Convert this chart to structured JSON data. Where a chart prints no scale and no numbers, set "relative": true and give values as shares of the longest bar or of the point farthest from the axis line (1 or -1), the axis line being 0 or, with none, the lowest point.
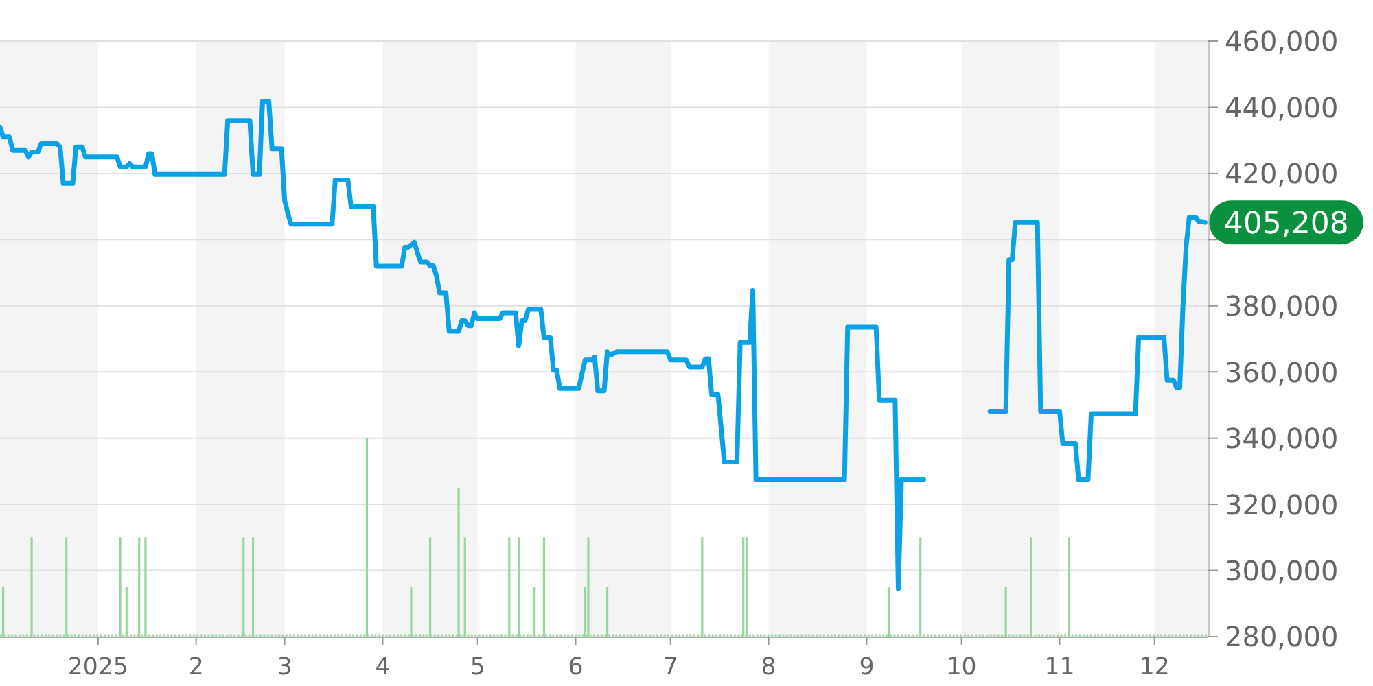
{
  "chart_data": [
    {
      "type": "line",
      "x": [
        "2024-12-01",
        "2024-12-02",
        "2024-12-04",
        "2024-12-05",
        "2024-12-09",
        "2024-12-10",
        "2024-12-11",
        "2024-12-13",
        "2024-12-14",
        "2024-12-19",
        "2024-12-20",
        "2024-12-21",
        "2024-12-24",
        "2024-12-25",
        "2024-12-27",
        "2024-12-28",
        "2025-01-07",
        "2025-01-08",
        "2025-01-10",
        "2025-01-11",
        "2025-01-12",
        "2025-01-16",
        "2025-01-17",
        "2025-01-18",
        "2025-01-19",
        "2025-02-10",
        "2025-02-11",
        "2025-02-18",
        "2025-02-19",
        "2025-02-21",
        "2025-02-22",
        "2025-02-24",
        "2025-02-25",
        "2025-02-28",
        "2025-03-01",
        "2025-03-02",
        "2025-03-03",
        "2025-03-16",
        "2025-03-17",
        "2025-03-21",
        "2025-03-22",
        "2025-03-29",
        "2025-03-30",
        "2025-04-07",
        "2025-04-08",
        "2025-04-09",
        "2025-04-11",
        "2025-04-12",
        "2025-04-13",
        "2025-04-15",
        "2025-04-16",
        "2025-04-17",
        "2025-04-18",
        "2025-04-19",
        "2025-04-21",
        "2025-04-22",
        "2025-04-25",
        "2025-04-26",
        "2025-04-27",
        "2025-04-28",
        "2025-04-29",
        "2025-04-30",
        "2025-05-01",
        "2025-05-08",
        "2025-05-09",
        "2025-05-13",
        "2025-05-14",
        "2025-05-15",
        "2025-05-16",
        "2025-05-17",
        "2025-05-21",
        "2025-05-22",
        "2025-05-24",
        "2025-05-25",
        "2025-05-26",
        "2025-05-27",
        "2025-06-02",
        "2025-06-03",
        "2025-06-04",
        "2025-06-06",
        "2025-06-07",
        "2025-06-08",
        "2025-06-10",
        "2025-06-11",
        "2025-06-12",
        "2025-06-14",
        "2025-06-30",
        "2025-07-01",
        "2025-07-06",
        "2025-07-07",
        "2025-07-11",
        "2025-07-12",
        "2025-07-13",
        "2025-07-14",
        "2025-07-16",
        "2025-07-17",
        "2025-07-18",
        "2025-07-22",
        "2025-07-23",
        "2025-07-26",
        "2025-07-27",
        "2025-07-28",
        "2025-08-25",
        "2025-08-26",
        "2025-09-04",
        "2025-09-05",
        "2025-09-10",
        "2025-09-11",
        "2025-09-12",
        "2025-09-19",
        "2025-09-30",
        "2025-10-10",
        "2025-10-15",
        "2025-10-16",
        "2025-10-17",
        "2025-10-18",
        "2025-10-25",
        "2025-10-26",
        "2025-11-01",
        "2025-11-02",
        "2025-11-06",
        "2025-11-07",
        "2025-11-10",
        "2025-11-11",
        "2025-11-25",
        "2025-11-26",
        "2025-12-04",
        "2025-12-05",
        "2025-12-07",
        "2025-12-08",
        "2025-12-09",
        "2025-12-10",
        "2025-12-11",
        "2025-12-12",
        "2025-12-14",
        "2025-12-15",
        "2025-12-16",
        "2025-12-17"
      ],
      "series": [
        {
          "color": "#0ba1e6",
          "values": [
            434000,
            431000,
            431000,
            427000,
            427000,
            425000,
            426500,
            426500,
            429000,
            429000,
            428000,
            417000,
            417000,
            428000,
            428000,
            425000,
            425000,
            422000,
            422000,
            423000,
            422000,
            422000,
            426000,
            426000,
            419700,
            419700,
            436000,
            436000,
            419700,
            419700,
            441800,
            441800,
            427500,
            427500,
            411800,
            408000,
            404700,
            404700,
            418000,
            418000,
            410000,
            410000,
            392000,
            392000,
            397700,
            397700,
            399200,
            396000,
            393200,
            393200,
            392100,
            392100,
            389000,
            383900,
            383900,
            372300,
            372300,
            375500,
            375500,
            374000,
            374000,
            377900,
            376100,
            376100,
            377900,
            377900,
            367900,
            375500,
            375500,
            378900,
            378900,
            370300,
            370300,
            360500,
            360500,
            355000,
            355000,
            359500,
            363600,
            363600,
            364500,
            354300,
            354300,
            366100,
            365100,
            366100,
            366100,
            363600,
            363600,
            361500,
            361500,
            364000,
            364000,
            353200,
            353200,
            343000,
            332800,
            332800,
            368900,
            368900,
            384600,
            327500,
            327500,
            373500,
            373500,
            351500,
            351500,
            294500,
            327500,
            327500,
            null,
            348100,
            348100,
            393900,
            393900,
            405200,
            405200,
            348100,
            348100,
            338400,
            338400,
            327500,
            327500,
            347400,
            347400,
            370500,
            370500,
            357500,
            357500,
            355300,
            355300,
            380000,
            398000,
            406800,
            406800,
            405500,
            405500,
            405208
          ]
        }
      ],
      "xlim": [
        "2024-12-01",
        "2025-12-18"
      ],
      "xticks": [
        {
          "value": "2025-01-01",
          "label": "2025"
        },
        {
          "value": "2025-02-01",
          "label": "2"
        },
        {
          "value": "2025-03-01",
          "label": "3"
        },
        {
          "value": "2025-04-01",
          "label": "4"
        },
        {
          "value": "2025-05-01",
          "label": "5"
        },
        {
          "value": "2025-06-01",
          "label": "6"
        },
        {
          "value": "2025-07-01",
          "label": "7"
        },
        {
          "value": "2025-08-01",
          "label": "8"
        },
        {
          "value": "2025-09-01",
          "label": "9"
        },
        {
          "value": "2025-10-01",
          "label": "10"
        },
        {
          "value": "2025-11-01",
          "label": "11"
        },
        {
          "value": "2025-12-01",
          "label": "12"
        }
      ],
      "ylim": [
        280000,
        460000
      ],
      "yticks": [
        {
          "value": 280000,
          "label": "280,000"
        },
        {
          "value": 300000,
          "label": "300,000"
        },
        {
          "value": 320000,
          "label": "320,000"
        },
        {
          "value": 340000,
          "label": "340,000"
        },
        {
          "value": 360000,
          "label": "360,000"
        },
        {
          "value": 380000,
          "label": "380,000"
        },
        {
          "value": 400000,
          "label": null
        },
        {
          "value": 420000,
          "label": "420,000"
        },
        {
          "value": 440000,
          "label": "440,000"
        },
        {
          "value": 460000,
          "label": "460,000"
        }
      ],
      "grid": "y",
      "bands": [
        {
          "axis": "x",
          "from": "2024-12-01",
          "to": "2025-01-01",
          "color": "#f4f4f4"
        },
        {
          "axis": "x",
          "from": "2025-02-01",
          "to": "2025-03-01",
          "color": "#f4f4f4"
        },
        {
          "axis": "x",
          "from": "2025-04-01",
          "to": "2025-05-01",
          "color": "#f4f4f4"
        },
        {
          "axis": "x",
          "from": "2025-06-01",
          "to": "2025-07-01",
          "color": "#f4f4f4"
        },
        {
          "axis": "x",
          "from": "2025-08-01",
          "to": "2025-09-01",
          "color": "#f4f4f4"
        },
        {
          "axis": "x",
          "from": "2025-10-01",
          "to": "2025-11-01",
          "color": "#f4f4f4"
        },
        {
          "axis": "x",
          "from": "2025-12-01",
          "to": "2025-12-18",
          "color": "#f4f4f4"
        }
      ],
      "annotations": [
        {
          "text": "405,208",
          "x": "2025-12-17",
          "y": 405208
        }
      ]
    },
    {
      "type": "bar",
      "x": [
        "2024-12-02",
        "2024-12-11",
        "2024-12-22",
        "2025-01-08",
        "2025-01-10",
        "2025-01-14",
        "2025-01-16",
        "2025-02-16",
        "2025-02-19",
        "2025-03-27",
        "2025-04-10",
        "2025-04-16",
        "2025-04-25",
        "2025-04-27",
        "2025-05-11",
        "2025-05-14",
        "2025-05-19",
        "2025-05-22",
        "2025-06-04",
        "2025-06-05",
        "2025-06-11",
        "2025-07-11",
        "2025-07-24",
        "2025-07-25",
        "2025-09-08",
        "2025-09-18",
        "2025-10-15",
        "2025-10-23",
        "2025-11-04"
      ],
      "values": [
        0.25,
        0.5,
        0.5,
        0.5,
        0.25,
        0.5,
        0.5,
        0.5,
        0.5,
        1,
        0.25,
        0.5,
        0.75,
        0.5,
        0.5,
        0.5,
        0.25,
        0.5,
        0.25,
        0.5,
        0.25,
        0.5,
        0.5,
        0.5,
        0.25,
        0.5,
        0.25,
        0.5,
        0.5
      ],
      "color": "#98d79b",
      "relative": true,
      "xlim": [
        "2024-12-01",
        "2025-12-18"
      ],
      "tick_labels": false
    }
  ]
}
